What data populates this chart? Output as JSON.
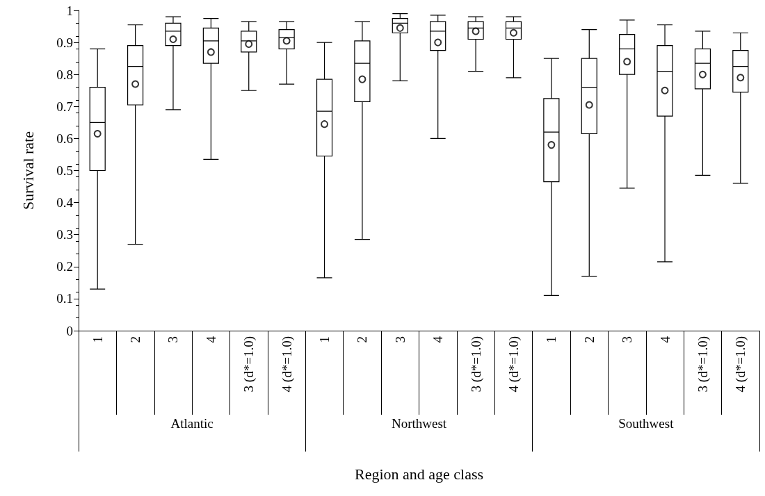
{
  "chart_data": {
    "type": "box",
    "xlabel": "Region and age class",
    "ylabel": "Survival rate",
    "categories": [
      "1",
      "2",
      "3",
      "4",
      "3 (d*=1.0)",
      "4 (d*=1.0)",
      "1",
      "2",
      "3",
      "4",
      "3 (d*=1.0)",
      "4 (d*=1.0)",
      "1",
      "2",
      "3",
      "4",
      "3 (d*=1.0)",
      "4 (d*=1.0)"
    ],
    "annotations": [
      "Atlantic",
      "Northwest",
      "Southwest"
    ],
    "ylim": [
      0,
      1
    ],
    "yticks": [
      0,
      0.1,
      0.2,
      0.3,
      0.4,
      0.5,
      0.6,
      0.7,
      0.8,
      0.9,
      1
    ],
    "grid": false,
    "marker": "circle",
    "series": [
      {
        "color": "#000000",
        "boxes": [
          {
            "low": 0.13,
            "q1": 0.5,
            "median": 0.65,
            "q3": 0.76,
            "high": 0.88,
            "mean": 0.615
          },
          {
            "low": 0.27,
            "q1": 0.705,
            "median": 0.825,
            "q3": 0.89,
            "high": 0.955,
            "mean": 0.77
          },
          {
            "low": 0.69,
            "q1": 0.89,
            "median": 0.935,
            "q3": 0.96,
            "high": 0.98,
            "mean": 0.91
          },
          {
            "low": 0.535,
            "q1": 0.835,
            "median": 0.905,
            "q3": 0.945,
            "high": 0.975,
            "mean": 0.87
          },
          {
            "low": 0.75,
            "q1": 0.87,
            "median": 0.905,
            "q3": 0.935,
            "high": 0.965,
            "mean": 0.895
          },
          {
            "low": 0.77,
            "q1": 0.88,
            "median": 0.915,
            "q3": 0.94,
            "high": 0.965,
            "mean": 0.905
          },
          {
            "low": 0.165,
            "q1": 0.545,
            "median": 0.685,
            "q3": 0.785,
            "high": 0.9,
            "mean": 0.645
          },
          {
            "low": 0.285,
            "q1": 0.715,
            "median": 0.835,
            "q3": 0.905,
            "high": 0.965,
            "mean": 0.785
          },
          {
            "low": 0.78,
            "q1": 0.93,
            "median": 0.96,
            "q3": 0.975,
            "high": 0.99,
            "mean": 0.945
          },
          {
            "low": 0.6,
            "q1": 0.875,
            "median": 0.935,
            "q3": 0.965,
            "high": 0.985,
            "mean": 0.9
          },
          {
            "low": 0.81,
            "q1": 0.91,
            "median": 0.945,
            "q3": 0.965,
            "high": 0.98,
            "mean": 0.935
          },
          {
            "low": 0.79,
            "q1": 0.91,
            "median": 0.945,
            "q3": 0.965,
            "high": 0.98,
            "mean": 0.93
          },
          {
            "low": 0.11,
            "q1": 0.465,
            "median": 0.62,
            "q3": 0.725,
            "high": 0.85,
            "mean": 0.58
          },
          {
            "low": 0.17,
            "q1": 0.615,
            "median": 0.76,
            "q3": 0.85,
            "high": 0.94,
            "mean": 0.705
          },
          {
            "low": 0.445,
            "q1": 0.8,
            "median": 0.88,
            "q3": 0.925,
            "high": 0.97,
            "mean": 0.84
          },
          {
            "low": 0.215,
            "q1": 0.67,
            "median": 0.81,
            "q3": 0.89,
            "high": 0.955,
            "mean": 0.75
          },
          {
            "low": 0.485,
            "q1": 0.755,
            "median": 0.835,
            "q3": 0.88,
            "high": 0.935,
            "mean": 0.8
          },
          {
            "low": 0.46,
            "q1": 0.745,
            "median": 0.825,
            "q3": 0.875,
            "high": 0.93,
            "mean": 0.79
          }
        ]
      }
    ]
  }
}
